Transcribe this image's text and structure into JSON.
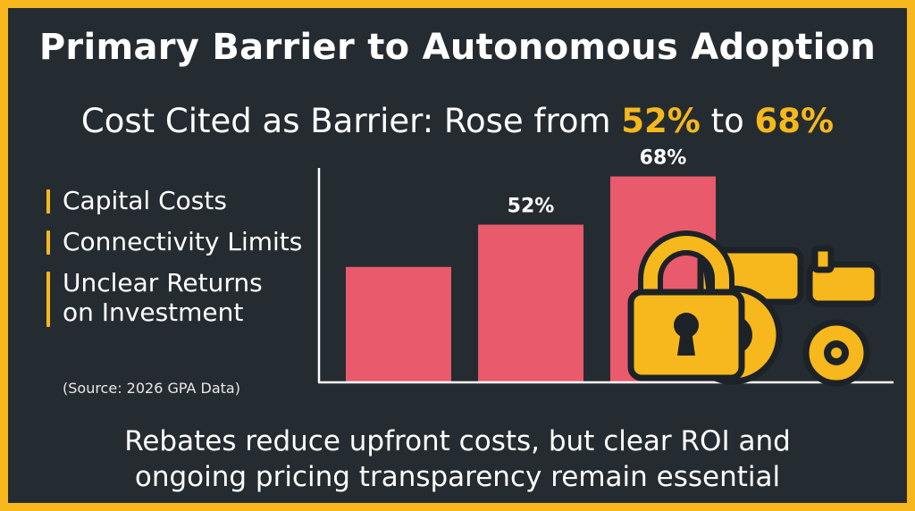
{
  "title": "Primary Barrier to Autonomous Adoption",
  "subtitle": {
    "prefix": "Cost Cited as Barrier: Rose from ",
    "value_a": "52%",
    "middle": " to ",
    "value_b": "68%"
  },
  "barriers": [
    "Capital Costs",
    "Connectivity Limits",
    "Unclear Returns on Investment"
  ],
  "source": "(Source: 2026 GPA Data)",
  "footer": {
    "line1": "Rebates reduce upfront costs, but clear ROI and",
    "line2": "ongoing pricing transparency remain essential"
  },
  "colors": {
    "bar": "#e85a6c",
    "accent": "#f6b81c",
    "background": "#252c31"
  },
  "icons": [
    "padlock-icon",
    "tractor-icon"
  ],
  "chart_data": {
    "type": "bar",
    "categories": [
      "",
      "",
      ""
    ],
    "values": [
      38,
      52,
      68
    ],
    "data_labels": [
      "",
      "52%",
      "68%"
    ],
    "title": "",
    "xlabel": "",
    "ylabel": "",
    "ylim": [
      0,
      80
    ],
    "grid": false
  }
}
